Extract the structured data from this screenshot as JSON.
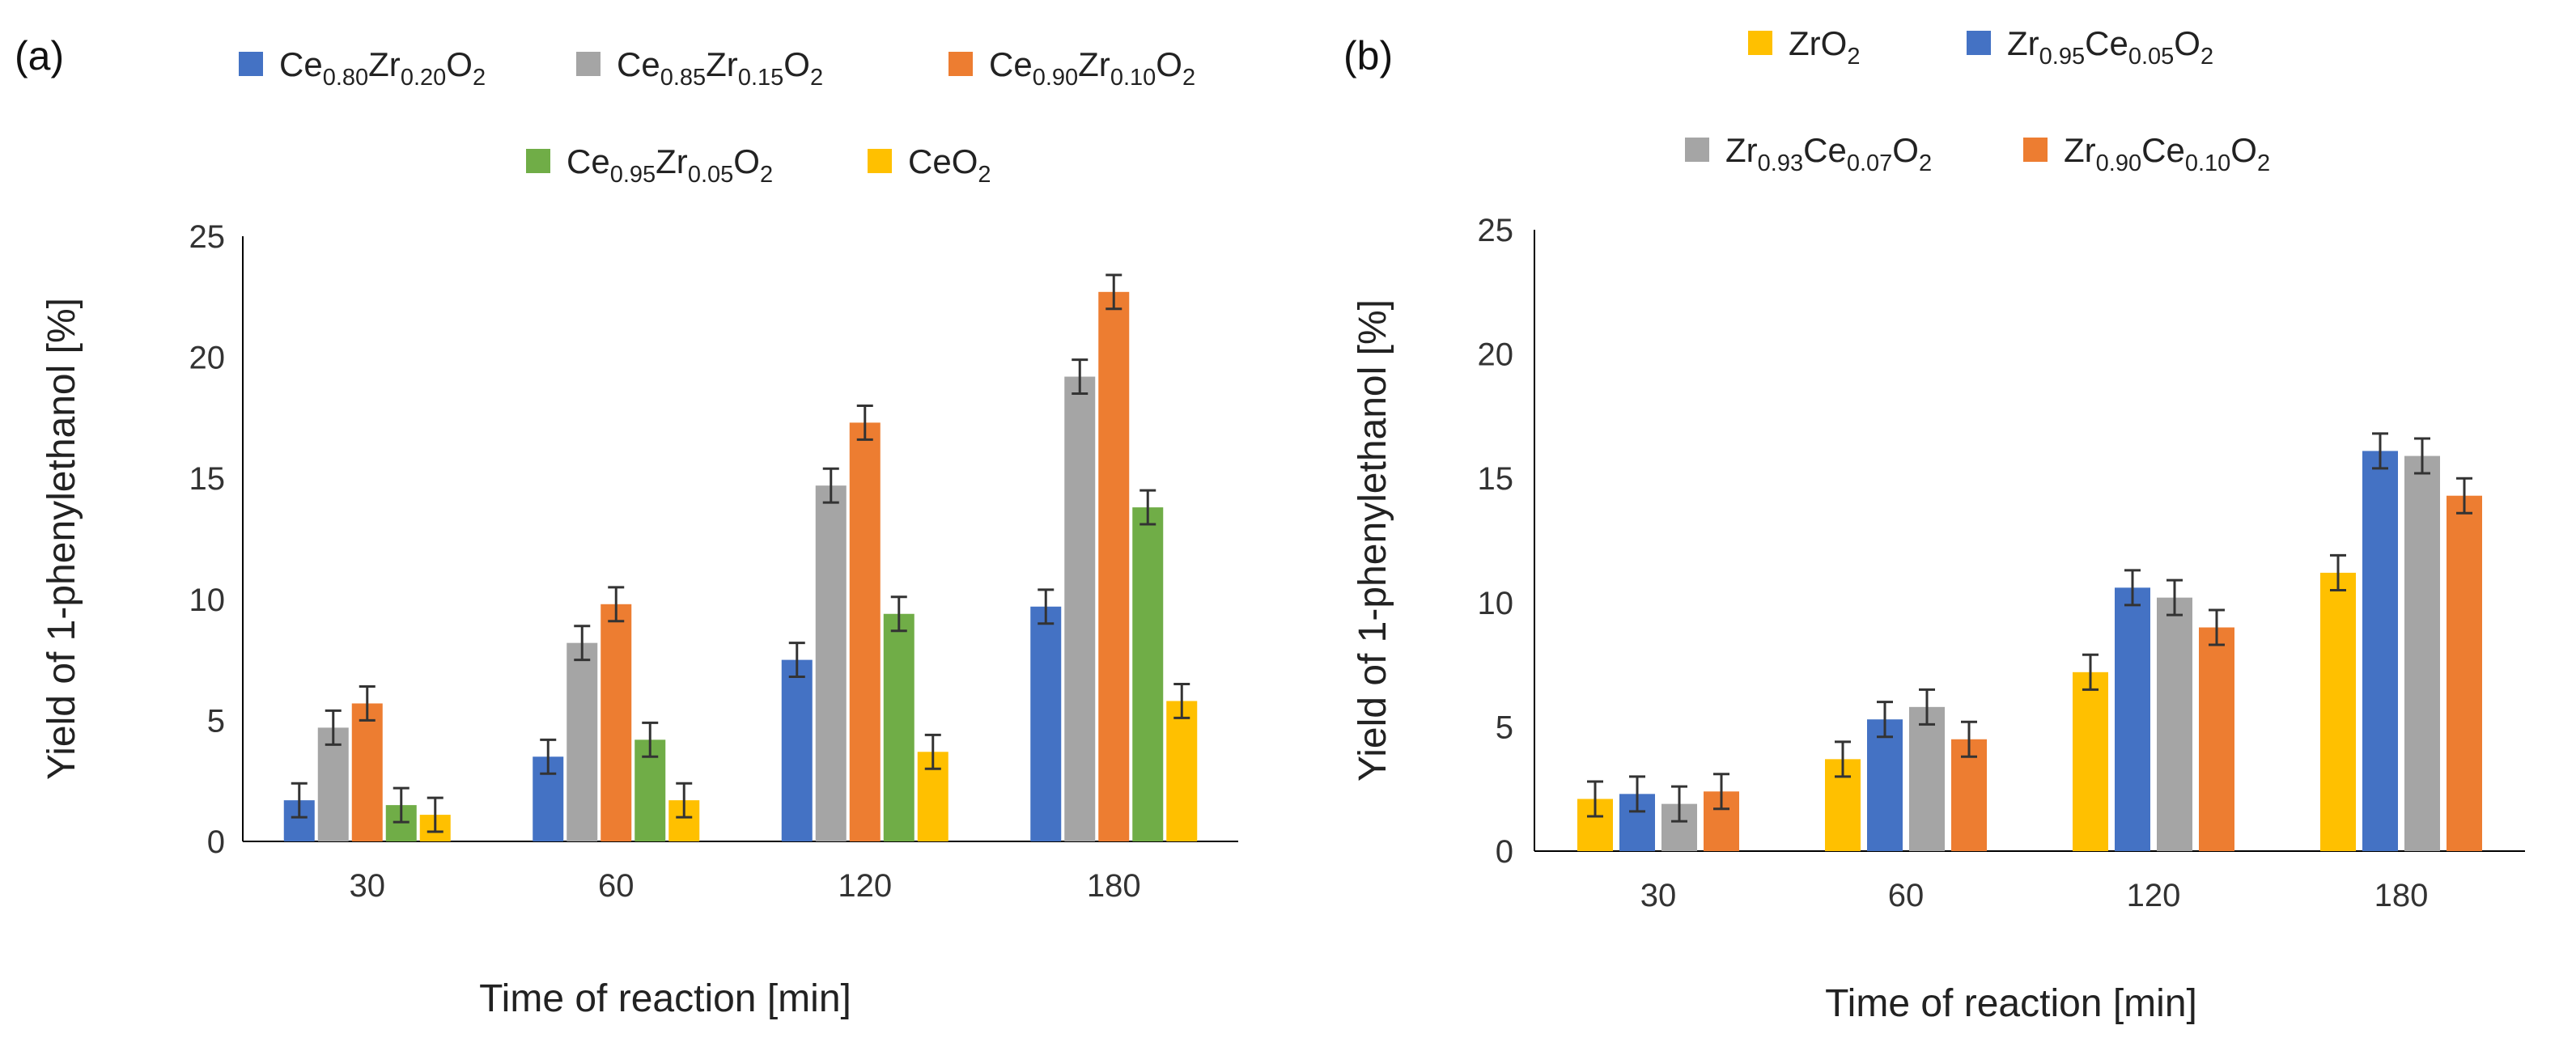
{
  "chart_data": [
    {
      "panel": "(a)",
      "type": "bar",
      "categories": [
        "30",
        "60",
        "120",
        "180"
      ],
      "xlabel": "Time of reaction [min]",
      "ylabel": "Yield of 1-phenylethanol [%]",
      "ylim": [
        0,
        25
      ],
      "yticks": [
        0,
        5,
        10,
        15,
        20,
        25
      ],
      "grid": false,
      "error_bars": true,
      "series": [
        {
          "name": "Ce0.80Zr0.20O2",
          "label": [
            [
              "Ce",
              ""
            ],
            [
              "0.80",
              "sub"
            ],
            [
              "Zr",
              ""
            ],
            [
              "0.20",
              "sub"
            ],
            [
              "O",
              ""
            ],
            [
              "2",
              "sub"
            ]
          ],
          "color": "#4472C4",
          "values": [
            1.7,
            3.5,
            7.5,
            9.7
          ],
          "errors": [
            0.7,
            0.7,
            0.7,
            0.7
          ]
        },
        {
          "name": "Ce0.85Zr0.15O2",
          "label": [
            [
              "Ce",
              ""
            ],
            [
              "0.85",
              "sub"
            ],
            [
              "Zr",
              ""
            ],
            [
              "0.15",
              "sub"
            ],
            [
              "O",
              ""
            ],
            [
              "2",
              "sub"
            ]
          ],
          "color": "#A5A5A5",
          "values": [
            4.7,
            8.2,
            14.7,
            19.2
          ],
          "errors": [
            0.7,
            0.7,
            0.7,
            0.7
          ]
        },
        {
          "name": "Ce0.90Zr0.10O2",
          "label": [
            [
              "Ce",
              ""
            ],
            [
              "0.90",
              "sub"
            ],
            [
              "Zr",
              ""
            ],
            [
              "0.10",
              "sub"
            ],
            [
              "O",
              ""
            ],
            [
              "2",
              "sub"
            ]
          ],
          "color": "#ED7D31",
          "values": [
            5.7,
            9.8,
            17.3,
            22.7
          ],
          "errors": [
            0.7,
            0.7,
            0.7,
            0.7
          ]
        },
        {
          "name": "Ce0.95Zr0.05O2",
          "label": [
            [
              "Ce",
              ""
            ],
            [
              "0.95",
              "sub"
            ],
            [
              "Zr",
              ""
            ],
            [
              "0.05",
              "sub"
            ],
            [
              "O",
              ""
            ],
            [
              "2",
              "sub"
            ]
          ],
          "color": "#70AD47",
          "values": [
            1.5,
            4.2,
            9.4,
            13.8
          ],
          "errors": [
            0.7,
            0.7,
            0.7,
            0.7
          ]
        },
        {
          "name": "CeO2",
          "label": [
            [
              "CeO",
              ""
            ],
            [
              "2",
              "sub"
            ]
          ],
          "color": "#FFC000",
          "values": [
            1.1,
            1.7,
            3.7,
            5.8
          ],
          "errors": [
            0.7,
            0.7,
            0.7,
            0.7
          ]
        }
      ]
    },
    {
      "panel": "(b)",
      "type": "bar",
      "categories": [
        "30",
        "60",
        "120",
        "180"
      ],
      "xlabel": "Time of reaction [min]",
      "ylabel": "Yield of 1-phenylethanol [%]",
      "ylim": [
        0,
        25
      ],
      "yticks": [
        0,
        5,
        10,
        15,
        20,
        25
      ],
      "grid": false,
      "error_bars": true,
      "series": [
        {
          "name": "ZrO2",
          "label": [
            [
              "ZrO",
              ""
            ],
            [
              "2",
              "sub"
            ]
          ],
          "color": "#FFC000",
          "values": [
            2.1,
            3.7,
            7.2,
            11.2
          ],
          "errors": [
            0.7,
            0.7,
            0.7,
            0.7
          ]
        },
        {
          "name": "Zr0.95Ce0.05O2",
          "label": [
            [
              "Zr",
              ""
            ],
            [
              "0.95",
              "sub"
            ],
            [
              "Ce",
              ""
            ],
            [
              "0.05",
              "sub"
            ],
            [
              "O",
              ""
            ],
            [
              "2",
              "sub"
            ]
          ],
          "color": "#4472C4",
          "values": [
            2.3,
            5.3,
            10.6,
            16.1
          ],
          "errors": [
            0.7,
            0.7,
            0.7,
            0.7
          ]
        },
        {
          "name": "Zr0.93Ce0.07O2",
          "label": [
            [
              "Zr",
              ""
            ],
            [
              "0.93",
              "sub"
            ],
            [
              "Ce",
              ""
            ],
            [
              "0.07",
              "sub"
            ],
            [
              "O",
              ""
            ],
            [
              "2",
              "sub"
            ]
          ],
          "color": "#A5A5A5",
          "values": [
            1.9,
            5.8,
            10.2,
            15.9
          ],
          "errors": [
            0.7,
            0.7,
            0.7,
            0.7
          ]
        },
        {
          "name": "Zr0.90Ce0.10O2",
          "label": [
            [
              "Zr",
              ""
            ],
            [
              "0.90",
              "sub"
            ],
            [
              "Ce",
              ""
            ],
            [
              "0.10",
              "sub"
            ],
            [
              "O",
              ""
            ],
            [
              "2",
              "sub"
            ]
          ],
          "color": "#ED7D31",
          "values": [
            2.4,
            4.5,
            9.0,
            14.3
          ],
          "errors": [
            0.7,
            0.7,
            0.7,
            0.7
          ]
        }
      ]
    }
  ]
}
